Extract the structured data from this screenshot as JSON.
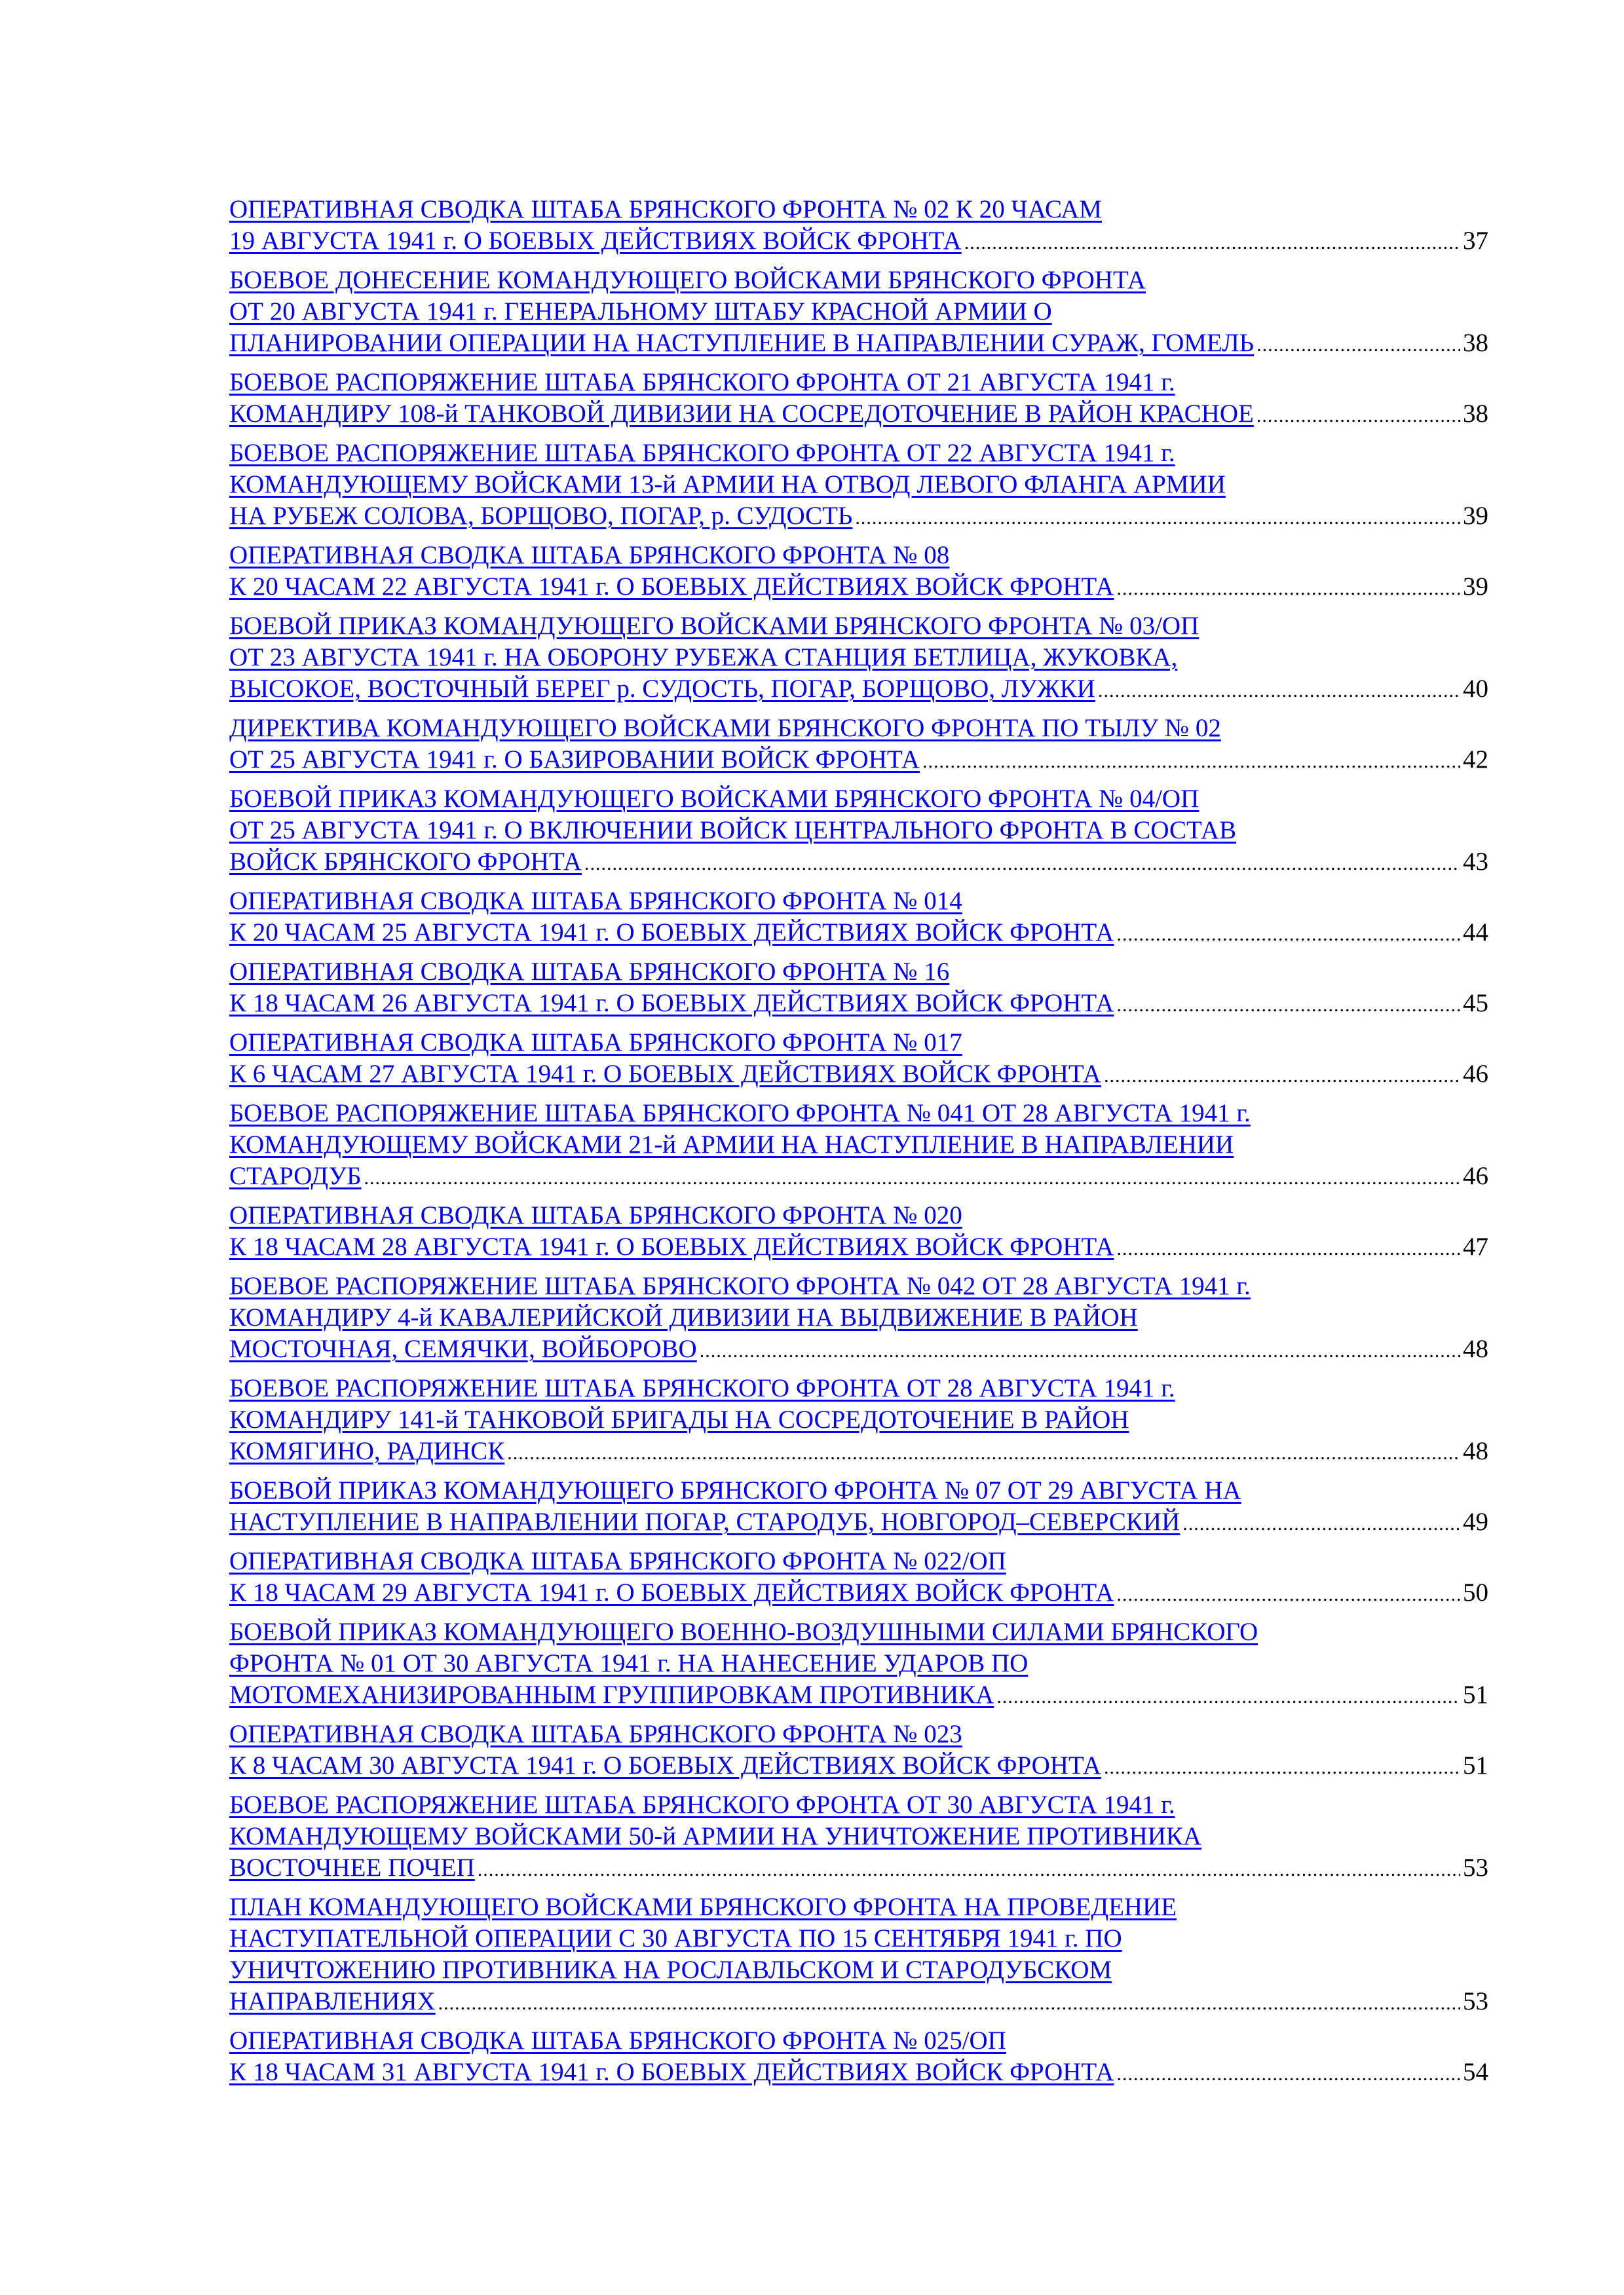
{
  "link_color": "#0000ff",
  "entries": [
    {
      "lines": [
        "ОПЕРАТИВНАЯ СВОДКА ШТАБА БРЯНСКОГО ФРОНТА  № 02 К 20 ЧАСАМ",
        "19 АВГУСТА 1941 г.  О БОЕВЫХ ДЕЙСТВИЯХ ВОЙСК ФРОНТА"
      ],
      "page": "37"
    },
    {
      "lines": [
        "БОЕВОЕ ДОНЕСЕНИЕ КОМАНДУЮЩЕГО ВОЙСКАМИ  БРЯНСКОГО ФРОНТА",
        "ОТ 20 АВГУСТА 1941 г.  ГЕНЕРАЛЬНОМУ ШТАБУ КРАСНОЙ АРМИИ О",
        "ПЛАНИРОВАНИИ ОПЕРАЦИИ НА НАСТУПЛЕНИЕ В НАПРАВЛЕНИИ СУРАЖ, ГОМЕЛЬ"
      ],
      "page": "38"
    },
    {
      "lines": [
        "БОЕВОЕ РАСПОРЯЖЕНИЕ ШТАБА БРЯНСКОГО ФРОНТА  ОТ 21 АВГУСТА 1941 г.",
        "КОМАНДИРУ 108-й ТАНКОВОЙ ДИВИЗИИ НА СОСРЕДОТОЧЕНИЕ В РАЙОН КРАСНОЕ"
      ],
      "page": "38"
    },
    {
      "lines": [
        "БОЕВОЕ РАСПОРЯЖЕНИЕ ШТАБА БРЯНСКОГО ФРОНТА  ОТ 22 АВГУСТА 1941 г.",
        "КОМАНДУЮЩЕМУ ВОЙСКАМИ 13-й АРМИИ НА ОТВОД ЛЕВОГО ФЛАНГА АРМИИ",
        "НА РУБЕЖ СОЛОВА, БОРЩОВО, ПОГАР, р. СУДОСТЬ"
      ],
      "page": "39"
    },
    {
      "lines": [
        "ОПЕРАТИВНАЯ СВОДКА ШТАБА БРЯНСКОГО ФРОНТА  № 08",
        "К 20 ЧАСАМ 22 АВГУСТА 1941 г. О БОЕВЫХ ДЕЙСТВИЯХ ВОЙСК ФРОНТА"
      ],
      "page": "39"
    },
    {
      "lines": [
        "БОЕВОЙ ПРИКАЗ КОМАНДУЮЩЕГО ВОЙСКАМИ БРЯНСКОГО ФРОНТА № 03/ОП",
        "ОТ 23 АВГУСТА 1941 г. НА ОБОРОНУ РУБЕЖА СТАНЦИЯ БЕТЛИЦА, ЖУКОВКА,",
        "ВЫСОКОЕ, ВОСТОЧНЫЙ БЕРЕГ  р. СУДОСТЬ, ПОГАР, БОРЩОВО, ЛУЖКИ"
      ],
      "page": "40"
    },
    {
      "lines": [
        "ДИРЕКТИВА КОМАНДУЮЩЕГО ВОЙСКАМИ БРЯНСКОГО ФРОНТА ПО ТЫЛУ № 02",
        "ОТ 25 АВГУСТА 1941 г. О БАЗИРОВАНИИ ВОЙСК ФРОНТА"
      ],
      "page": "42"
    },
    {
      "lines": [
        "БОЕВОЙ ПРИКАЗ КОМАНДУЮЩЕГО ВОЙСКАМИ БРЯНСКОГО ФРОНТА № 04/ОП",
        "ОТ 25 АВГУСТА 1941 г. О ВКЛЮЧЕНИИ ВОЙСК ЦЕНТРАЛЬНОГО ФРОНТА В СОСТАВ",
        "ВОЙСК БРЯНСКОГО ФРОНТА"
      ],
      "page": "43"
    },
    {
      "lines": [
        "ОПЕРАТИВНАЯ СВОДКА ШТАБА БРЯНСКОГО ФРОНТА № 014",
        "К 20 ЧАСАМ 25 АВГУСТА 1941 г. О БОЕВЫХ ДЕЙСТВИЯХ ВОЙСК ФРОНТА"
      ],
      "page": "44"
    },
    {
      "lines": [
        "ОПЕРАТИВНАЯ СВОДКА ШТАБА БРЯНСКОГО ФРОНТА № 16",
        "К 18 ЧАСАМ 26 АВГУСТА 1941 г. О БОЕВЫХ ДЕЙСТВИЯХ ВОЙСК ФРОНТА"
      ],
      "page": "45"
    },
    {
      "lines": [
        "ОПЕРАТИВНАЯ СВОДКА ШТАБА БРЯНСКОГО ФРОНТА № 017",
        "К 6 ЧАСАМ 27 АВГУСТА 1941 г. О БОЕВЫХ ДЕЙСТВИЯХ ВОЙСК ФРОНТА"
      ],
      "page": "46"
    },
    {
      "lines": [
        "БОЕВОЕ РАСПОРЯЖЕНИЕ ШТАБА БРЯНСКОГО ФРОНТА № 041  ОТ 28 АВГУСТА 1941 г.",
        "КОМАНДУЮЩЕМУ ВОЙСКАМИ 21-й АРМИИ НА НАСТУПЛЕНИЕ В НАПРАВЛЕНИИ",
        "СТАРОДУБ"
      ],
      "page": "46"
    },
    {
      "lines": [
        "ОПЕРАТИВНАЯ СВОДКА ШТАБА БРЯНСКОГО ФРОНТА № 020",
        "К 18 ЧАСАМ 28 АВГУСТА 1941 г. О БОЕВЫХ ДЕЙСТВИЯХ ВОЙСК ФРОНТА"
      ],
      "page": "47"
    },
    {
      "lines": [
        "БОЕВОЕ РАСПОРЯЖЕНИЕ ШТАБА БРЯНСКОГО ФРОНТА № 042  ОТ 28 АВГУСТА 1941 г.",
        "КОМАНДИРУ 4-й КАВАЛЕРИЙСКОЙ ДИВИЗИИ НА ВЫДВИЖЕНИЕ В РАЙОН",
        "МОСТОЧНАЯ, СЕМЯЧКИ, ВОЙБОРОВО"
      ],
      "page": "48"
    },
    {
      "lines": [
        "БОЕВОЕ РАСПОРЯЖЕНИЕ ШТАБА БРЯНСКОГО ФРОНТА  ОТ 28 АВГУСТА 1941 г.",
        "КОМАНДИРУ 141-й ТАНКОВОЙ БРИГАДЫ НА СОСРЕДОТОЧЕНИЕ В РАЙОН",
        "КОМЯГИНО, РАДИНСК"
      ],
      "page": "48"
    },
    {
      "lines": [
        "БОЕВОЙ ПРИКАЗ КОМАНДУЮЩЕГО БРЯНСКОГО ФРОНТА № 07 ОТ 29 АВГУСТА НА",
        "НАСТУПЛЕНИЕ В НАПРАВЛЕНИИ ПОГАР, СТАРОДУБ, НОВГОРОД–СЕВЕРСКИЙ"
      ],
      "page": "49"
    },
    {
      "lines": [
        "ОПЕРАТИВНАЯ СВОДКА ШТАБА БРЯНСКОГО ФРОНТА № 022/ОП",
        "К 18 ЧАСАМ 29 АВГУСТА 1941 г. О БОЕВЫХ ДЕЙСТВИЯХ ВОЙСК ФРОНТА"
      ],
      "page": "50"
    },
    {
      "lines": [
        "БОЕВОЙ ПРИКАЗ КОМАНДУЮЩЕГО ВОЕННО-ВОЗДУШНЫМИ СИЛАМИ БРЯНСКОГО",
        "ФРОНТА № 01 ОТ 30 АВГУСТА 1941 г.  НА НАНЕСЕНИЕ УДАРОВ ПО",
        "МОТОМЕХАНИЗИРОВАННЫМ ГРУППИРОВКАМ ПРОТИВНИКА"
      ],
      "page": "51"
    },
    {
      "lines": [
        "ОПЕРАТИВНАЯ СВОДКА ШТАБА БРЯНСКОГО ФРОНТА № 023",
        "К 8 ЧАСАМ 30 АВГУСТА 1941 г. О БОЕВЫХ ДЕЙСТВИЯХ ВОЙСК ФРОНТА"
      ],
      "page": "51"
    },
    {
      "lines": [
        "БОЕВОЕ РАСПОРЯЖЕНИЕ ШТАБА БРЯНСКОГО ФРОНТА  ОТ 30 АВГУСТА 1941 г.",
        "КОМАНДУЮЩЕМУ ВОЙСКАМИ 50-й АРМИИ НА УНИЧТОЖЕНИЕ ПРОТИВНИКА",
        "ВОСТОЧНЕЕ ПОЧЕП"
      ],
      "page": "53"
    },
    {
      "lines": [
        "ПЛАН КОМАНДУЮЩЕГО ВОЙСКАМИ БРЯНСКОГО ФРОНТА  НА ПРОВЕДЕНИЕ",
        "НАСТУПАТЕЛЬНОЙ ОПЕРАЦИИ  С 30 АВГУСТА ПО 15 СЕНТЯБРЯ 1941 г. ПО",
        "УНИЧТОЖЕНИЮ ПРОТИВНИКА НА РОСЛАВЛЬСКОМ И СТАРОДУБСКОМ",
        "НАПРАВЛЕНИЯХ"
      ],
      "page": "53"
    },
    {
      "lines": [
        "ОПЕРАТИВНАЯ СВОДКА ШТАБА БРЯНСКОГО ФРОНТА № 025/ОП",
        "К 18 ЧАСАМ 31 АВГУСТА 1941 г. О БОЕВЫХ ДЕЙСТВИЯХ ВОЙСК ФРОНТА"
      ],
      "page": "54"
    }
  ]
}
